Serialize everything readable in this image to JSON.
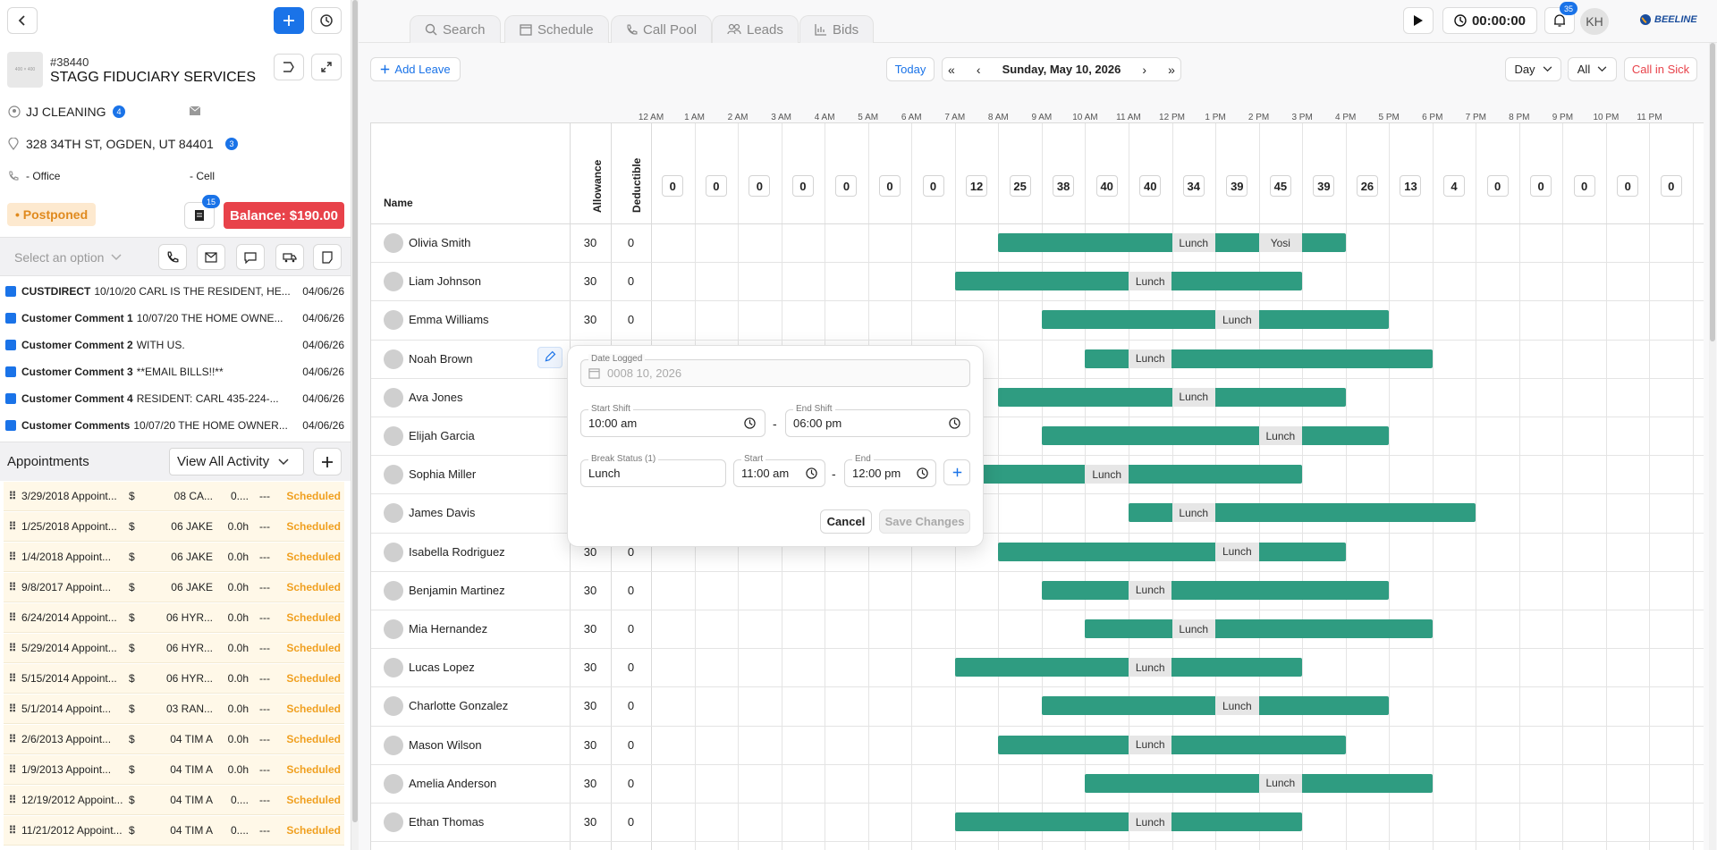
{
  "customer": {
    "id": "#38440",
    "name": "STAGG FIDUCIARY SERVICES",
    "logo_text": "400 × 400",
    "contact": "JJ CLEANING",
    "contact_badge": "4",
    "address": "328 34TH ST, OGDEN, UT 84401",
    "address_badge": "3",
    "office": "- Office",
    "cell": "- Cell",
    "status": "• Postponed",
    "doc_badge": "15",
    "balance": "Balance: $190.00",
    "select_placeholder": "Select an option"
  },
  "comments": [
    {
      "title": "CUSTDIRECT",
      "text": "10/10/20 CARL IS THE RESIDENT, HE...",
      "date": "04/06/26"
    },
    {
      "title": "Customer Comment 1",
      "text": "10/07/20 THE HOME OWNE...",
      "date": "04/06/26"
    },
    {
      "title": "Customer Comment 2",
      "text": "WITH US.",
      "date": "04/06/26"
    },
    {
      "title": "Customer Comment 3",
      "text": "**EMAIL BILLS!!**",
      "date": "04/06/26"
    },
    {
      "title": "Customer Comment 4",
      "text": "RESIDENT: CARL 435-224-...",
      "date": "04/06/26"
    },
    {
      "title": "Customer Comments",
      "text": "10/07/20 THE HOME OWNER...",
      "date": "04/06/26"
    }
  ],
  "appointments": {
    "title": "Appointments",
    "filter": "View All Activity",
    "rows": [
      {
        "date": "3/29/2018 Appoint...",
        "price": "$",
        "tech": "08 CA...",
        "hours": "0....",
        "dash": "---",
        "status": "Scheduled"
      },
      {
        "date": "1/25/2018 Appoint...",
        "price": "$",
        "tech": "06 JAKE",
        "hours": "0.0h",
        "dash": "---",
        "status": "Scheduled"
      },
      {
        "date": "1/4/2018 Appoint...",
        "price": "$",
        "tech": "06 JAKE",
        "hours": "0.0h",
        "dash": "---",
        "status": "Scheduled"
      },
      {
        "date": "9/8/2017 Appoint...",
        "price": "$",
        "tech": "06 JAKE",
        "hours": "0.0h",
        "dash": "---",
        "status": "Scheduled"
      },
      {
        "date": "6/24/2014 Appoint...",
        "price": "$",
        "tech": "06 HYR...",
        "hours": "0.0h",
        "dash": "---",
        "status": "Scheduled"
      },
      {
        "date": "5/29/2014 Appoint...",
        "price": "$",
        "tech": "06 HYR...",
        "hours": "0.0h",
        "dash": "---",
        "status": "Scheduled"
      },
      {
        "date": "5/15/2014 Appoint...",
        "price": "$",
        "tech": "06 HYR...",
        "hours": "0.0h",
        "dash": "---",
        "status": "Scheduled"
      },
      {
        "date": "5/1/2014 Appoint...",
        "price": "$",
        "tech": "03 RAN...",
        "hours": "0.0h",
        "dash": "---",
        "status": "Scheduled"
      },
      {
        "date": "2/6/2013 Appoint...",
        "price": "$",
        "tech": "04 TIM A",
        "hours": "0.0h",
        "dash": "---",
        "status": "Scheduled"
      },
      {
        "date": "1/9/2013 Appoint...",
        "price": "$",
        "tech": "04 TIM A",
        "hours": "0.0h",
        "dash": "---",
        "status": "Scheduled"
      },
      {
        "date": "12/19/2012 Appoint...",
        "price": "$",
        "tech": "04 TIM A",
        "hours": "0....",
        "dash": "---",
        "status": "Scheduled"
      },
      {
        "date": "11/21/2012 Appoint...",
        "price": "$",
        "tech": "04 TIM A",
        "hours": "0....",
        "dash": "---",
        "status": "Scheduled"
      }
    ]
  },
  "nav": {
    "tabs": [
      "Search",
      "Schedule",
      "Call Pool",
      "Leads",
      "Bids"
    ],
    "timer": "00:00:00",
    "notif_badge": "35",
    "user_initials": "KH",
    "brand": "BEELINE"
  },
  "toolbar": {
    "add_leave": "Add Leave",
    "today": "Today",
    "date": "Sunday, May 10, 2026",
    "view": "Day",
    "filter": "All",
    "call_in_sick": "Call in Sick"
  },
  "grid": {
    "col_name": "Name",
    "col_allowance": "Allowance",
    "col_deductible": "Deductible",
    "hours": [
      "12 AM",
      "1 AM",
      "2 AM",
      "3 AM",
      "4 AM",
      "5 AM",
      "6 AM",
      "7 AM",
      "8 AM",
      "9 AM",
      "10 AM",
      "11 AM",
      "12 PM",
      "1 PM",
      "2 PM",
      "3 PM",
      "4 PM",
      "5 PM",
      "6 PM",
      "7 PM",
      "8 PM",
      "9 PM",
      "10 PM",
      "11 PM"
    ],
    "counts": [
      "0",
      "0",
      "0",
      "0",
      "0",
      "0",
      "0",
      "12",
      "25",
      "38",
      "40",
      "40",
      "34",
      "39",
      "45",
      "39",
      "26",
      "13",
      "4",
      "0",
      "0",
      "0",
      "0",
      "0"
    ],
    "employees": [
      {
        "name": "Olivia Smith",
        "allowance": "30",
        "deductible": "0",
        "start": 8,
        "end": 16,
        "breaks": [
          {
            "label": "Lunch",
            "start": 12,
            "end": 13
          },
          {
            "label": "Yosi",
            "start": 14,
            "end": 15
          }
        ]
      },
      {
        "name": "Liam Johnson",
        "allowance": "30",
        "deductible": "0",
        "start": 7,
        "end": 15,
        "breaks": [
          {
            "label": "Lunch",
            "start": 11,
            "end": 12
          }
        ]
      },
      {
        "name": "Emma Williams",
        "allowance": "30",
        "deductible": "0",
        "start": 9,
        "end": 17,
        "breaks": [
          {
            "label": "Lunch",
            "start": 13,
            "end": 14
          }
        ]
      },
      {
        "name": "Noah Brown",
        "allowance": "",
        "deductible": "",
        "start": 10,
        "end": 18,
        "breaks": [
          {
            "label": "Lunch",
            "start": 11,
            "end": 12
          }
        ]
      },
      {
        "name": "Ava Jones",
        "allowance": "",
        "deductible": "",
        "start": 8,
        "end": 16,
        "breaks": [
          {
            "label": "Lunch",
            "start": 12,
            "end": 13
          }
        ]
      },
      {
        "name": "Elijah Garcia",
        "allowance": "",
        "deductible": "",
        "start": 9,
        "end": 17,
        "breaks": [
          {
            "label": "Lunch",
            "start": 14,
            "end": 15
          }
        ]
      },
      {
        "name": "Sophia Miller",
        "allowance": "",
        "deductible": "",
        "start": 7,
        "end": 15,
        "breaks": [
          {
            "label": "Lunch",
            "start": 10,
            "end": 11
          }
        ]
      },
      {
        "name": "James Davis",
        "allowance": "",
        "deductible": "",
        "start": 11,
        "end": 19,
        "breaks": [
          {
            "label": "Lunch",
            "start": 12,
            "end": 13
          }
        ]
      },
      {
        "name": "Isabella Rodriguez",
        "allowance": "30",
        "deductible": "0",
        "start": 8,
        "end": 16,
        "breaks": [
          {
            "label": "Lunch",
            "start": 13,
            "end": 14
          }
        ]
      },
      {
        "name": "Benjamin Martinez",
        "allowance": "30",
        "deductible": "0",
        "start": 9,
        "end": 17,
        "breaks": [
          {
            "label": "Lunch",
            "start": 11,
            "end": 12
          }
        ]
      },
      {
        "name": "Mia Hernandez",
        "allowance": "30",
        "deductible": "0",
        "start": 10,
        "end": 18,
        "breaks": [
          {
            "label": "Lunch",
            "start": 12,
            "end": 13
          }
        ]
      },
      {
        "name": "Lucas Lopez",
        "allowance": "30",
        "deductible": "0",
        "start": 7,
        "end": 15,
        "breaks": [
          {
            "label": "Lunch",
            "start": 11,
            "end": 12
          }
        ]
      },
      {
        "name": "Charlotte Gonzalez",
        "allowance": "30",
        "deductible": "0",
        "start": 9,
        "end": 17,
        "breaks": [
          {
            "label": "Lunch",
            "start": 13,
            "end": 14
          }
        ]
      },
      {
        "name": "Mason Wilson",
        "allowance": "30",
        "deductible": "0",
        "start": 8,
        "end": 16,
        "breaks": [
          {
            "label": "Lunch",
            "start": 11,
            "end": 12
          }
        ]
      },
      {
        "name": "Amelia Anderson",
        "allowance": "30",
        "deductible": "0",
        "start": 10,
        "end": 18,
        "breaks": [
          {
            "label": "Lunch",
            "start": 14,
            "end": 15
          }
        ]
      },
      {
        "name": "Ethan Thomas",
        "allowance": "30",
        "deductible": "0",
        "start": 7,
        "end": 15,
        "breaks": [
          {
            "label": "Lunch",
            "start": 11,
            "end": 12
          }
        ]
      }
    ]
  },
  "modal": {
    "date_label": "Date Logged",
    "date_value": "0008 10, 2026",
    "start_shift_label": "Start Shift",
    "start_shift": "10:00 am",
    "end_shift_label": "End Shift",
    "end_shift": "06:00 pm",
    "break_label": "Break Status (1)",
    "break_value": "Lunch",
    "break_start_label": "Start",
    "break_start": "11:00 am",
    "break_end_label": "End",
    "break_end": "12:00 pm",
    "cancel": "Cancel",
    "save": "Save Changes",
    "dash": "-"
  },
  "colors": {
    "accent": "#1a73e8",
    "shift": "#2f9c81",
    "balance": "#e8424a",
    "scheduled": "#f0a020",
    "postponed_bg": "#fde9cf"
  }
}
